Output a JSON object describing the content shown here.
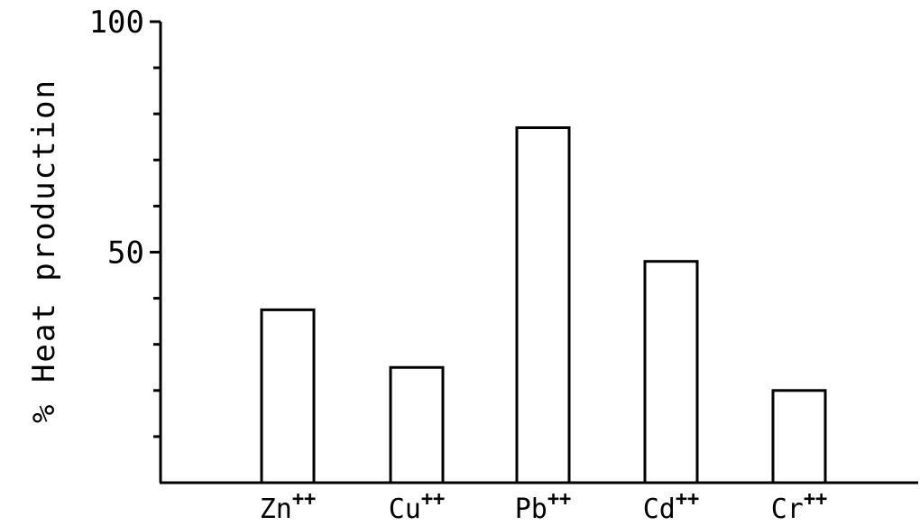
{
  "chart_data": {
    "type": "bar",
    "title": "",
    "xlabel": "",
    "ylabel": "% Heat production",
    "categories": [
      {
        "base": "Zn",
        "sup": "++"
      },
      {
        "base": "Cu",
        "sup": "++"
      },
      {
        "base": "Pb",
        "sup": "++"
      },
      {
        "base": "Cd",
        "sup": "++"
      },
      {
        "base": "Cr",
        "sup": "++"
      }
    ],
    "values": [
      37.5,
      25,
      77,
      48,
      20
    ],
    "ylim": [
      0,
      100
    ],
    "y_tick_labels": [
      {
        "value": 50,
        "label": "50"
      },
      {
        "value": 100,
        "label": "100"
      }
    ],
    "y_minor_ticks": [
      10,
      20,
      30,
      40,
      50,
      60,
      70,
      80,
      90,
      100
    ],
    "grid": false,
    "legend": "none",
    "bar_fill": "#ffffff",
    "bar_stroke": "#000000"
  }
}
